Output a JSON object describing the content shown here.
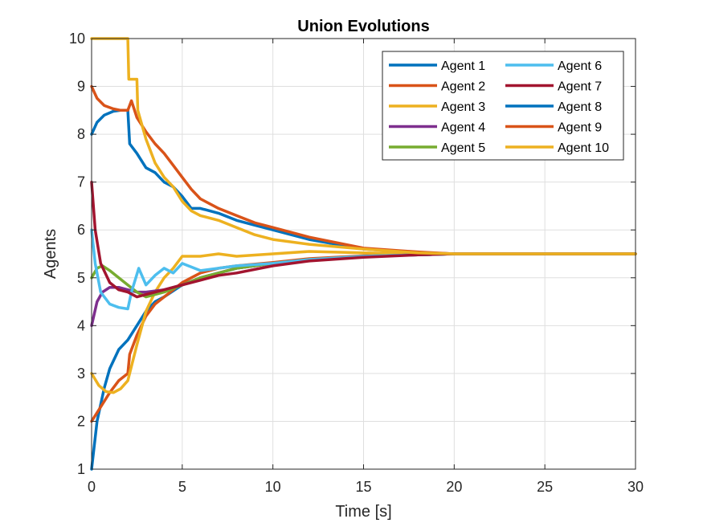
{
  "chart_data": {
    "type": "line",
    "title": "Union Evolutions",
    "xlabel": "Time [s]",
    "ylabel": "Agents",
    "xlim": [
      0,
      30
    ],
    "ylim": [
      1,
      10
    ],
    "xticks": [
      0,
      5,
      10,
      15,
      20,
      25,
      30
    ],
    "yticks": [
      1,
      2,
      3,
      4,
      5,
      6,
      7,
      8,
      9,
      10
    ],
    "grid": true,
    "legend_position": "top-right",
    "legend_columns": 2,
    "series": [
      {
        "name": "Agent 1",
        "color": "#0072BD",
        "x": [
          0,
          0.3,
          0.7,
          1.0,
          1.5,
          2.0,
          2.5,
          3.0,
          3.5,
          4.0,
          5.0,
          6.0,
          7.0,
          8.0,
          10.0,
          12.0,
          15.0,
          18.0,
          20.0,
          25.0,
          30.0
        ],
        "y": [
          1.0,
          2.0,
          2.7,
          3.1,
          3.5,
          3.7,
          4.0,
          4.3,
          4.5,
          4.6,
          4.85,
          5.0,
          5.1,
          5.2,
          5.3,
          5.38,
          5.45,
          5.48,
          5.5,
          5.5,
          5.5
        ]
      },
      {
        "name": "Agent 2",
        "color": "#D95319",
        "x": [
          0,
          0.5,
          1.0,
          1.5,
          2.0,
          2.1,
          2.5,
          3.0,
          3.5,
          4.0,
          5.0,
          6.0,
          7.0,
          8.0,
          10.0,
          12.0,
          15.0,
          18.0,
          20.0,
          25.0,
          30.0
        ],
        "y": [
          2.0,
          2.3,
          2.6,
          2.85,
          3.0,
          3.4,
          3.8,
          4.2,
          4.45,
          4.6,
          4.9,
          5.1,
          5.2,
          5.25,
          5.32,
          5.4,
          5.46,
          5.49,
          5.5,
          5.5,
          5.5
        ]
      },
      {
        "name": "Agent 3",
        "color": "#EDB120",
        "x": [
          0,
          0.4,
          0.8,
          1.2,
          1.6,
          2.0,
          2.5,
          3.0,
          3.5,
          4.0,
          4.5,
          5.0,
          6.0,
          7.0,
          8.0,
          10.0,
          12.0,
          15.0,
          18.0,
          20.0,
          25.0,
          30.0
        ],
        "y": [
          3.0,
          2.75,
          2.62,
          2.6,
          2.68,
          2.85,
          3.6,
          4.3,
          4.7,
          5.0,
          5.2,
          5.45,
          5.45,
          5.5,
          5.45,
          5.5,
          5.55,
          5.52,
          5.5,
          5.5,
          5.5,
          5.5
        ]
      },
      {
        "name": "Agent 4",
        "color": "#7E2F8E",
        "x": [
          0,
          0.3,
          0.6,
          1.0,
          1.5,
          2.0,
          2.5,
          3.0,
          4.0,
          5.0,
          6.0,
          7.0,
          8.0,
          10.0,
          12.0,
          15.0,
          18.0,
          20.0,
          25.0,
          30.0
        ],
        "y": [
          4.0,
          4.5,
          4.7,
          4.8,
          4.8,
          4.75,
          4.7,
          4.7,
          4.75,
          4.85,
          5.0,
          5.1,
          5.2,
          5.3,
          5.38,
          5.45,
          5.48,
          5.5,
          5.5,
          5.5
        ]
      },
      {
        "name": "Agent 5",
        "color": "#77AC30",
        "x": [
          0,
          0.3,
          0.6,
          1.0,
          1.5,
          2.0,
          2.5,
          3.0,
          4.0,
          5.0,
          6.0,
          7.0,
          8.0,
          10.0,
          12.0,
          15.0,
          18.0,
          20.0,
          25.0,
          30.0
        ],
        "y": [
          5.0,
          5.2,
          5.25,
          5.15,
          5.0,
          4.85,
          4.7,
          4.6,
          4.7,
          4.85,
          5.0,
          5.1,
          5.2,
          5.3,
          5.38,
          5.45,
          5.48,
          5.5,
          5.5,
          5.5
        ]
      },
      {
        "name": "Agent 6",
        "color": "#4DBEEE",
        "x": [
          0,
          0.2,
          0.5,
          1.0,
          1.5,
          2.0,
          2.2,
          2.6,
          3.0,
          3.5,
          4.0,
          4.5,
          5.0,
          6.0,
          7.0,
          8.0,
          10.0,
          12.0,
          15.0,
          18.0,
          20.0,
          25.0,
          30.0
        ],
        "y": [
          6.0,
          5.3,
          4.7,
          4.45,
          4.38,
          4.35,
          4.7,
          5.2,
          4.85,
          5.05,
          5.2,
          5.1,
          5.3,
          5.15,
          5.2,
          5.25,
          5.3,
          5.38,
          5.45,
          5.48,
          5.5,
          5.5,
          5.5
        ]
      },
      {
        "name": "Agent 7",
        "color": "#A2142F",
        "x": [
          0,
          0.2,
          0.5,
          1.0,
          1.5,
          2.0,
          2.5,
          3.0,
          4.0,
          5.0,
          6.0,
          7.0,
          8.0,
          10.0,
          12.0,
          15.0,
          18.0,
          20.0,
          25.0,
          30.0
        ],
        "y": [
          7.0,
          6.0,
          5.3,
          4.9,
          4.75,
          4.7,
          4.6,
          4.65,
          4.75,
          4.85,
          4.95,
          5.05,
          5.1,
          5.25,
          5.35,
          5.43,
          5.48,
          5.5,
          5.5,
          5.5
        ]
      },
      {
        "name": "Agent 8",
        "color": "#0072BD",
        "x": [
          0,
          0.3,
          0.7,
          1.2,
          1.6,
          2.0,
          2.1,
          2.5,
          3.0,
          3.5,
          4.0,
          4.5,
          5.0,
          5.5,
          6.0,
          7.0,
          8.0,
          9.0,
          10.0,
          12.0,
          15.0,
          18.0,
          20.0,
          25.0,
          30.0
        ],
        "y": [
          8.0,
          8.25,
          8.4,
          8.48,
          8.5,
          8.5,
          7.8,
          7.6,
          7.3,
          7.2,
          7.0,
          6.9,
          6.7,
          6.45,
          6.45,
          6.35,
          6.2,
          6.1,
          6.0,
          5.8,
          5.6,
          5.53,
          5.5,
          5.5,
          5.5
        ]
      },
      {
        "name": "Agent 9",
        "color": "#D95319",
        "x": [
          0,
          0.3,
          0.7,
          1.2,
          1.6,
          2.0,
          2.2,
          2.5,
          3.0,
          3.5,
          4.0,
          4.5,
          5.0,
          5.5,
          6.0,
          7.0,
          8.0,
          9.0,
          10.0,
          12.0,
          15.0,
          18.0,
          20.0,
          25.0,
          30.0
        ],
        "y": [
          9.0,
          8.75,
          8.6,
          8.53,
          8.5,
          8.5,
          8.7,
          8.35,
          8.05,
          7.8,
          7.6,
          7.35,
          7.1,
          6.85,
          6.65,
          6.45,
          6.3,
          6.15,
          6.05,
          5.85,
          5.62,
          5.54,
          5.5,
          5.5,
          5.5
        ]
      },
      {
        "name": "Agent 10",
        "color": "#EDB120",
        "x": [
          0,
          0.5,
          1.0,
          1.5,
          2.0,
          2.05,
          2.5,
          2.55,
          3.0,
          3.5,
          4.0,
          4.5,
          5.0,
          5.5,
          6.0,
          7.0,
          8.0,
          9.0,
          10.0,
          12.0,
          15.0,
          18.0,
          20.0,
          25.0,
          30.0
        ],
        "y": [
          10.0,
          10.0,
          10.0,
          10.0,
          10.0,
          9.15,
          9.15,
          8.5,
          7.9,
          7.4,
          7.1,
          6.9,
          6.6,
          6.4,
          6.3,
          6.2,
          6.05,
          5.9,
          5.8,
          5.7,
          5.6,
          5.52,
          5.5,
          5.5,
          5.5
        ]
      }
    ]
  }
}
